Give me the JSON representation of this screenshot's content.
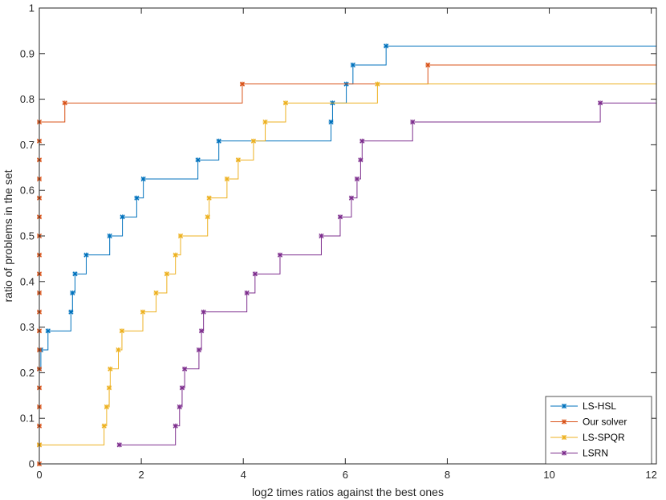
{
  "chart_data": {
    "type": "line",
    "title": "",
    "xlabel": "log2 times ratios against the best ones",
    "ylabel": "ratio of problems in the set",
    "xlim": [
      0,
      12.1
    ],
    "ylim": [
      0,
      1
    ],
    "xticks": [
      0,
      2,
      4,
      6,
      8,
      10,
      12
    ],
    "yticks": [
      0,
      0.1,
      0.2,
      0.3,
      0.4,
      0.5,
      0.6,
      0.7,
      0.8,
      0.9,
      1
    ],
    "ytick_labels": [
      "0",
      "0.1",
      "0.2",
      "0.3",
      "0.4",
      "0.5",
      "0.6",
      "0.7",
      "0.8",
      "0.9",
      "1"
    ],
    "grid": false,
    "legend_position": "bottom-right",
    "series": [
      {
        "name": "LS-HSL",
        "color": "#0072BD",
        "step": true,
        "points": [
          [
            0,
            0.2083
          ],
          [
            0.03,
            0.25
          ],
          [
            0.17,
            0.2917
          ],
          [
            0.62,
            0.3333
          ],
          [
            0.65,
            0.375
          ],
          [
            0.7,
            0.4167
          ],
          [
            0.92,
            0.4583
          ],
          [
            1.38,
            0.5
          ],
          [
            1.63,
            0.5417
          ],
          [
            1.91,
            0.5833
          ],
          [
            2.04,
            0.625
          ],
          [
            3.11,
            0.6667
          ],
          [
            3.52,
            0.7083
          ],
          [
            5.72,
            0.75
          ],
          [
            5.75,
            0.7917
          ],
          [
            6.02,
            0.8333
          ],
          [
            6.15,
            0.875
          ],
          [
            6.8,
            0.9167
          ],
          [
            12.1,
            0.9167
          ]
        ]
      },
      {
        "name": "Our solver",
        "color": "#D95319",
        "step": true,
        "points": [
          [
            0,
            0
          ],
          [
            0,
            0.0417
          ],
          [
            0,
            0.0833
          ],
          [
            0,
            0.125
          ],
          [
            0,
            0.1667
          ],
          [
            0,
            0.2083
          ],
          [
            0,
            0.25
          ],
          [
            0,
            0.2917
          ],
          [
            0,
            0.3333
          ],
          [
            0,
            0.375
          ],
          [
            0,
            0.4167
          ],
          [
            0,
            0.4583
          ],
          [
            0,
            0.5
          ],
          [
            0,
            0.5417
          ],
          [
            0,
            0.5833
          ],
          [
            0,
            0.625
          ],
          [
            0,
            0.6667
          ],
          [
            0,
            0.7083
          ],
          [
            0,
            0.75
          ],
          [
            0.5,
            0.7917
          ],
          [
            3.98,
            0.8333
          ],
          [
            7.62,
            0.875
          ],
          [
            12.1,
            0.875
          ]
        ]
      },
      {
        "name": "LS-SPQR",
        "color": "#EDB120",
        "step": true,
        "points": [
          [
            0,
            0.0417
          ],
          [
            1.27,
            0.0833
          ],
          [
            1.32,
            0.125
          ],
          [
            1.37,
            0.1667
          ],
          [
            1.39,
            0.2083
          ],
          [
            1.55,
            0.25
          ],
          [
            1.62,
            0.2917
          ],
          [
            2.03,
            0.3333
          ],
          [
            2.29,
            0.375
          ],
          [
            2.5,
            0.4167
          ],
          [
            2.67,
            0.4583
          ],
          [
            2.77,
            0.5
          ],
          [
            3.3,
            0.5417
          ],
          [
            3.33,
            0.5833
          ],
          [
            3.68,
            0.625
          ],
          [
            3.9,
            0.6667
          ],
          [
            4.2,
            0.7083
          ],
          [
            4.43,
            0.75
          ],
          [
            4.83,
            0.7917
          ],
          [
            6.63,
            0.8333
          ],
          [
            12.1,
            0.8333
          ]
        ]
      },
      {
        "name": "LSRN",
        "color": "#7E2F8E",
        "step": true,
        "points": [
          [
            1.57,
            0.0417
          ],
          [
            2.67,
            0.0833
          ],
          [
            2.75,
            0.125
          ],
          [
            2.8,
            0.1667
          ],
          [
            2.85,
            0.2083
          ],
          [
            3.13,
            0.25
          ],
          [
            3.18,
            0.2917
          ],
          [
            3.22,
            0.3333
          ],
          [
            4.07,
            0.375
          ],
          [
            4.23,
            0.4167
          ],
          [
            4.72,
            0.4583
          ],
          [
            5.53,
            0.5
          ],
          [
            5.9,
            0.5417
          ],
          [
            6.12,
            0.5833
          ],
          [
            6.23,
            0.625
          ],
          [
            6.3,
            0.6667
          ],
          [
            6.33,
            0.7083
          ],
          [
            7.32,
            0.75
          ],
          [
            11.0,
            0.7917
          ],
          [
            12.1,
            0.7917
          ]
        ]
      }
    ]
  }
}
